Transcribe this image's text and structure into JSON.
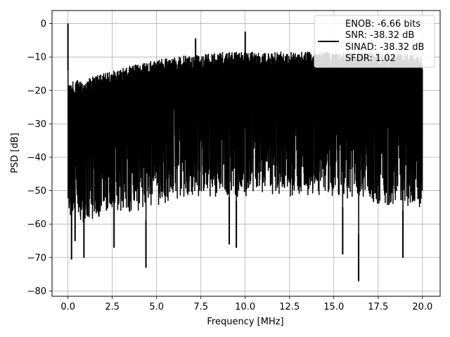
{
  "chart_data": {
    "type": "line",
    "xlabel": "Frequency [MHz]",
    "ylabel": "PSD [dB]",
    "xlim": [
      -0.9,
      21.0
    ],
    "ylim": [
      -81.6,
      3.9
    ],
    "xticks": [
      0.0,
      2.5,
      5.0,
      7.5,
      10.0,
      12.5,
      15.0,
      17.5,
      20.0
    ],
    "xtick_labels": [
      "0.0",
      "2.5",
      "5.0",
      "7.5",
      "10.0",
      "12.5",
      "15.0",
      "17.5",
      "20.0"
    ],
    "yticks": [
      0,
      -10,
      -20,
      -30,
      -40,
      -50,
      -60,
      -70,
      -80
    ],
    "ytick_labels": [
      "0",
      "−10",
      "−20",
      "−30",
      "−40",
      "−50",
      "−60",
      "−70",
      "−80"
    ],
    "grid": true,
    "legend_position": "top-right",
    "series": [
      {
        "color": "#000000",
        "x_range": [
          0.0,
          20.0
        ],
        "upper_envelope": {
          "x": [
            0.0,
            0.1,
            0.2,
            1.0,
            2.0,
            3.0,
            4.0,
            5.0,
            6.0,
            7.0,
            8.0,
            9.0,
            10.0,
            11.0,
            12.0,
            13.0,
            14.0,
            15.0,
            16.0,
            17.0,
            18.0,
            19.0,
            20.0
          ],
          "y": [
            -18,
            -17,
            -17.5,
            -16.5,
            -15,
            -13.5,
            -12,
            -11,
            -10,
            -9.5,
            -9,
            -8.5,
            -8.5,
            -8.5,
            -8.5,
            -8.5,
            -8.5,
            -8.5,
            -8.5,
            -8.5,
            -9,
            -9,
            -10
          ]
        },
        "lower_envelope": {
          "x": [
            0.0,
            1.0,
            2.0,
            3.0,
            4.0,
            5.0,
            6.0,
            7.0,
            8.0,
            9.0,
            10.0,
            11.0,
            12.0,
            13.0,
            14.0,
            15.0,
            16.0,
            17.0,
            18.0,
            19.0,
            20.0
          ],
          "y": [
            -60,
            -60,
            -58,
            -57,
            -56,
            -55,
            -53,
            -52,
            -52,
            -52,
            -52,
            -52,
            -52,
            -52,
            -52,
            -52,
            -53,
            -54,
            -55,
            -55,
            -56
          ]
        },
        "peaks": [
          {
            "x": 0.0,
            "y": 0.0
          },
          {
            "x": 7.2,
            "y": -4.5
          },
          {
            "x": 10.0,
            "y": -2.5
          }
        ],
        "dips": [
          {
            "x": 0.2,
            "y": -70.5
          },
          {
            "x": 0.4,
            "y": -65
          },
          {
            "x": 0.9,
            "y": -70
          },
          {
            "x": 2.6,
            "y": -67
          },
          {
            "x": 4.4,
            "y": -73
          },
          {
            "x": 9.1,
            "y": -66
          },
          {
            "x": 9.5,
            "y": -67
          },
          {
            "x": 15.5,
            "y": -69
          },
          {
            "x": 16.4,
            "y": -77
          },
          {
            "x": 18.9,
            "y": -70
          }
        ]
      }
    ],
    "legend": {
      "lines": [
        "ENOB: -6.66 bits",
        "SNR: -38.32 dB",
        "SINAD: -38.32 dB",
        "SFDR: 1.02"
      ]
    }
  }
}
